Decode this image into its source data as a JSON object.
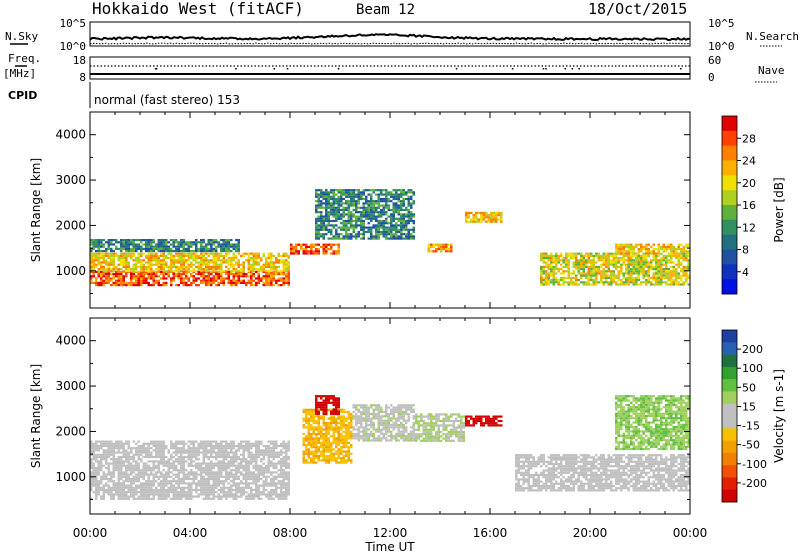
{
  "header": {
    "radar_title": "Hokkaido West (fitACF)",
    "beam_label": "Beam 12",
    "date_label": "18/Oct/2015"
  },
  "top_panels": {
    "noise": {
      "left_label": "N.Sky",
      "right_label": "N.Search",
      "left_ticks": [
        "10^5",
        "10^0"
      ],
      "right_ticks": [
        "10^5",
        "10^0"
      ]
    },
    "freq": {
      "left_label": "Freq.",
      "left_unit": "[MHz]",
      "left_ticks": [
        "18",
        "8"
      ],
      "right_label": "Nave",
      "right_ticks": [
        "60",
        "0"
      ]
    },
    "cpid": {
      "label": "CPID",
      "text": "normal (fast stereo) 153"
    }
  },
  "axes": {
    "ylabel": "Slant Range [km]",
    "xlabel": "Time UT",
    "yticks": [
      "4000",
      "3000",
      "2000",
      "1000"
    ],
    "xticks": [
      "00:00",
      "04:00",
      "08:00",
      "12:00",
      "16:00",
      "20:00",
      "00:00"
    ]
  },
  "colorbars": {
    "power": {
      "title": "Power [dB]",
      "ticks": [
        "28",
        "24",
        "20",
        "16",
        "12",
        "8",
        "4"
      ],
      "colors": [
        "#e00000",
        "#ff4000",
        "#ff8000",
        "#ffb000",
        "#f0e000",
        "#b0d020",
        "#60b040",
        "#309060",
        "#207080",
        "#2050a0",
        "#1030c0",
        "#0010e0"
      ]
    },
    "velocity": {
      "title": "Velocity [m s-1]",
      "ticks": [
        "200",
        "100",
        "50",
        "15",
        "-15",
        "-50",
        "-100",
        "-200"
      ],
      "colors": [
        "#2040a0",
        "#2a60b0",
        "#207040",
        "#30a030",
        "#60c040",
        "#a0d060",
        "#c0c0c0",
        "#c0c0c0",
        "#f8c000",
        "#f0a000",
        "#f08000",
        "#f05000",
        "#e02000",
        "#d00000"
      ]
    }
  },
  "chart_data": [
    {
      "type": "heatmap",
      "title": "Power [dB]",
      "xlabel": "Time UT",
      "ylabel": "Slant Range [km]",
      "x_range": [
        "00:00",
        "24:00"
      ],
      "ylim": [
        180,
        4500
      ],
      "colorbar_range": [
        0,
        30
      ],
      "regions": [
        {
          "x": [
            "00:00",
            "08:00"
          ],
          "y": [
            700,
            1000
          ],
          "value": 26
        },
        {
          "x": [
            "00:00",
            "08:00"
          ],
          "y": [
            1000,
            1400
          ],
          "value": 20
        },
        {
          "x": [
            "00:00",
            "06:00"
          ],
          "y": [
            1450,
            1700
          ],
          "value": 10
        },
        {
          "x": [
            "08:00",
            "10:00"
          ],
          "y": [
            1400,
            1600
          ],
          "value": 26
        },
        {
          "x": [
            "09:00",
            "13:00"
          ],
          "y": [
            1700,
            2800
          ],
          "value": 10
        },
        {
          "x": [
            "13:30",
            "14:30"
          ],
          "y": [
            1450,
            1600
          ],
          "value": 22
        },
        {
          "x": [
            "15:00",
            "16:30"
          ],
          "y": [
            2100,
            2300
          ],
          "value": 20
        },
        {
          "x": [
            "18:00",
            "24:00"
          ],
          "y": [
            700,
            1400
          ],
          "value": 18
        },
        {
          "x": [
            "21:00",
            "24:00"
          ],
          "y": [
            1400,
            1600
          ],
          "value": 20
        }
      ]
    },
    {
      "type": "heatmap",
      "title": "Velocity [m s-1]",
      "xlabel": "Time UT",
      "ylabel": "Slant Range [km]",
      "x_range": [
        "00:00",
        "24:00"
      ],
      "ylim": [
        180,
        4500
      ],
      "colorbar_range": [
        -200,
        200
      ],
      "regions": [
        {
          "x": [
            "00:00",
            "08:00"
          ],
          "y": [
            500,
            1800
          ],
          "value": 0
        },
        {
          "x": [
            "08:30",
            "10:30"
          ],
          "y": [
            1300,
            2500
          ],
          "value": -50
        },
        {
          "x": [
            "09:00",
            "10:00"
          ],
          "y": [
            2400,
            2800
          ],
          "value": -200
        },
        {
          "x": [
            "10:30",
            "13:00"
          ],
          "y": [
            1800,
            2600
          ],
          "value": 15
        },
        {
          "x": [
            "13:00",
            "15:00"
          ],
          "y": [
            1800,
            2400
          ],
          "value": 30
        },
        {
          "x": [
            "15:00",
            "16:30"
          ],
          "y": [
            2150,
            2350
          ],
          "value": -200
        },
        {
          "x": [
            "17:00",
            "24:00"
          ],
          "y": [
            700,
            1500
          ],
          "value": 0
        },
        {
          "x": [
            "21:00",
            "24:00"
          ],
          "y": [
            1600,
            2800
          ],
          "value": 50
        }
      ]
    }
  ]
}
